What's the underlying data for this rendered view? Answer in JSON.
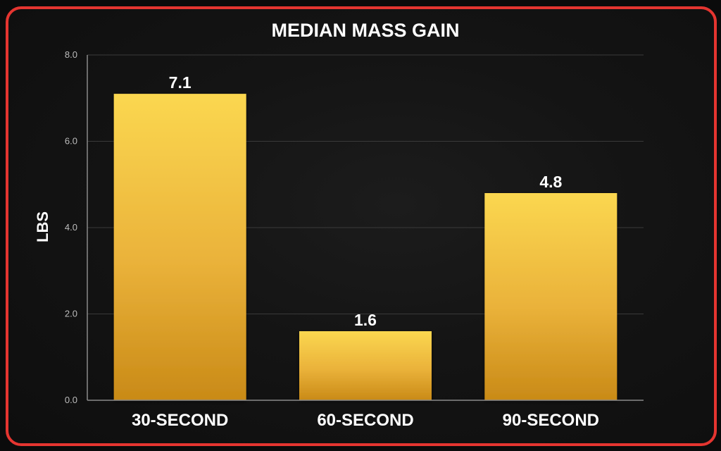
{
  "chart_data": {
    "type": "bar",
    "title": "MEDIAN MASS GAIN",
    "xlabel": "",
    "ylabel": "LBS",
    "categories": [
      "30-SECOND",
      "60-SECOND",
      "90-SECOND"
    ],
    "values": [
      7.1,
      1.6,
      4.8
    ],
    "value_labels": [
      "7.1",
      "1.6",
      "4.8"
    ],
    "ylim": [
      0,
      8
    ],
    "yticks": [
      0,
      2,
      4,
      6,
      8
    ],
    "ytick_labels": [
      "0.0",
      "2.0",
      "4.0",
      "6.0",
      "8.0"
    ],
    "grid": true,
    "legend": "none",
    "colors": {
      "bar_top": "#fbd750",
      "bar_mid": "#eab23a",
      "bar_bottom": "#c98a17",
      "frame_border": "#e53530",
      "background": "#121212",
      "text": "#ffffff"
    }
  }
}
